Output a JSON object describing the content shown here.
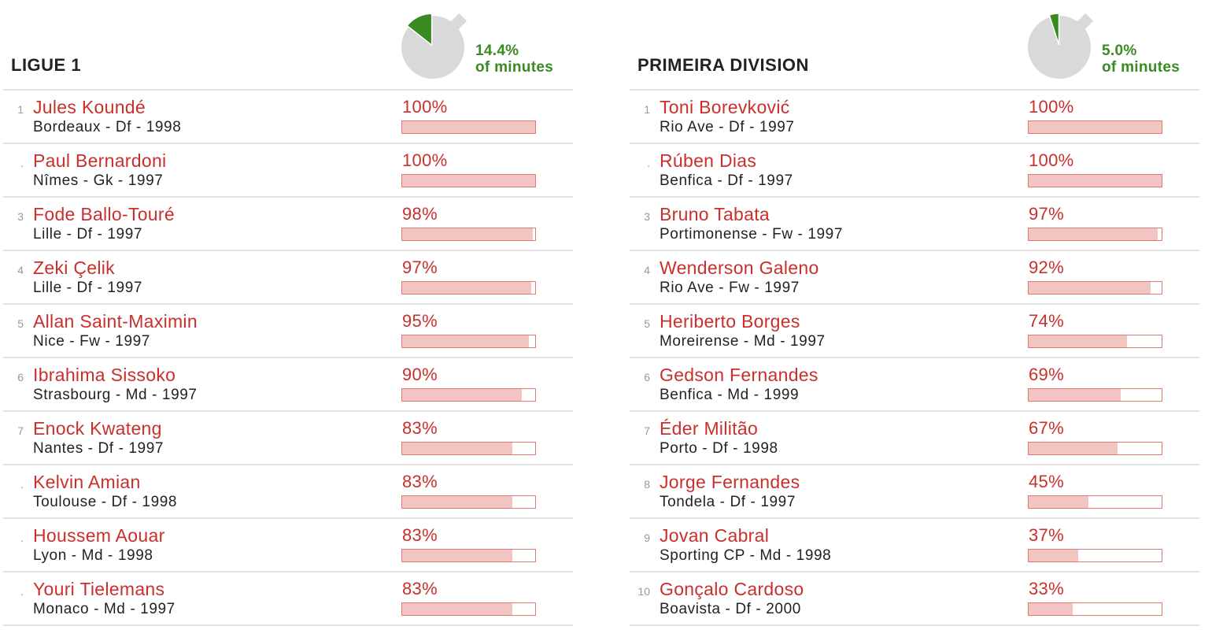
{
  "colors": {
    "accent_red": "#c9302c",
    "bar_fill": "#f2c5c3",
    "bar_border": "#e07a72",
    "pie_green": "#3a8a22",
    "pie_grey": "#d9d9d9"
  },
  "chart_data": [
    {
      "type": "table",
      "title": "LIGUE 1",
      "share_of_minutes": {
        "value": 14.4,
        "label_value": "14.4%",
        "label_text": "of minutes"
      },
      "rows": [
        {
          "rank": "1",
          "name": "Jules Koundé",
          "info": "Bordeaux - Df - 1998",
          "pct_label": "100%",
          "value": 100
        },
        {
          "rank": ".",
          "name": "Paul Bernardoni",
          "info": "Nîmes - Gk - 1997",
          "pct_label": "100%",
          "value": 100
        },
        {
          "rank": "3",
          "name": "Fode Ballo-Touré",
          "info": "Lille - Df - 1997",
          "pct_label": "98%",
          "value": 98
        },
        {
          "rank": "4",
          "name": "Zeki Çelik",
          "info": "Lille - Df - 1997",
          "pct_label": "97%",
          "value": 97
        },
        {
          "rank": "5",
          "name": "Allan Saint-Maximin",
          "info": "Nice - Fw - 1997",
          "pct_label": "95%",
          "value": 95
        },
        {
          "rank": "6",
          "name": "Ibrahima Sissoko",
          "info": "Strasbourg - Md - 1997",
          "pct_label": "90%",
          "value": 90
        },
        {
          "rank": "7",
          "name": "Enock Kwateng",
          "info": "Nantes - Df - 1997",
          "pct_label": "83%",
          "value": 83
        },
        {
          "rank": ".",
          "name": "Kelvin Amian",
          "info": "Toulouse - Df - 1998",
          "pct_label": "83%",
          "value": 83
        },
        {
          "rank": ".",
          "name": "Houssem Aouar",
          "info": "Lyon - Md - 1998",
          "pct_label": "83%",
          "value": 83
        },
        {
          "rank": ".",
          "name": "Youri Tielemans",
          "info": "Monaco - Md - 1997",
          "pct_label": "83%",
          "value": 83
        }
      ]
    },
    {
      "type": "table",
      "title": "PRIMEIRA DIVISION",
      "share_of_minutes": {
        "value": 5.0,
        "label_value": "5.0%",
        "label_text": "of minutes"
      },
      "rows": [
        {
          "rank": "1",
          "name": "Toni Borevković",
          "info": "Rio Ave - Df - 1997",
          "pct_label": "100%",
          "value": 100
        },
        {
          "rank": ".",
          "name": "Rúben Dias",
          "info": "Benfica - Df - 1997",
          "pct_label": "100%",
          "value": 100
        },
        {
          "rank": "3",
          "name": "Bruno Tabata",
          "info": "Portimonense - Fw - 1997",
          "pct_label": "97%",
          "value": 97
        },
        {
          "rank": "4",
          "name": "Wenderson Galeno",
          "info": "Rio Ave - Fw - 1997",
          "pct_label": "92%",
          "value": 92
        },
        {
          "rank": "5",
          "name": "Heriberto Borges",
          "info": "Moreirense - Md - 1997",
          "pct_label": "74%",
          "value": 74
        },
        {
          "rank": "6",
          "name": "Gedson Fernandes",
          "info": "Benfica - Md - 1999",
          "pct_label": "69%",
          "value": 69
        },
        {
          "rank": "7",
          "name": "Éder Militão",
          "info": "Porto - Df - 1998",
          "pct_label": "67%",
          "value": 67
        },
        {
          "rank": "8",
          "name": "Jorge Fernandes",
          "info": "Tondela - Df - 1997",
          "pct_label": "45%",
          "value": 45
        },
        {
          "rank": "9",
          "name": "Jovan Cabral",
          "info": "Sporting CP - Md - 1998",
          "pct_label": "37%",
          "value": 37
        },
        {
          "rank": "10",
          "name": "Gonçalo Cardoso",
          "info": "Boavista - Df - 2000",
          "pct_label": "33%",
          "value": 33
        }
      ]
    }
  ]
}
